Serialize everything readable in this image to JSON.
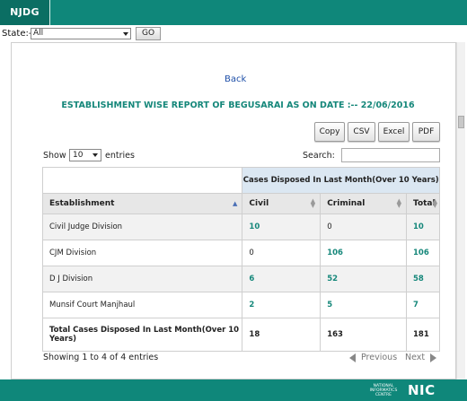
{
  "header": {
    "brand": "NJDG"
  },
  "state_bar": {
    "label": "State:-",
    "selected": "All",
    "go_label": "GO"
  },
  "report": {
    "back_label": "Back",
    "title": "ESTABLISHMENT WISE REPORT OF BEGUSARAI AS ON DATE :-- 22/06/2016",
    "export_buttons": [
      "Copy",
      "CSV",
      "Excel",
      "PDF"
    ],
    "show_label": "Show",
    "entries_value": "10",
    "entries_label": "entries",
    "search_label": "Search:",
    "search_value": "",
    "group_header": "Cases Disposed In Last Month(Over 10 Years)",
    "columns": [
      "Establishment",
      "Civil",
      "Criminal",
      "Total"
    ],
    "rows": [
      {
        "establishment": "Civil Judge Division",
        "civil": "10",
        "criminal": "0",
        "total": "10"
      },
      {
        "establishment": "CJM Division",
        "civil": "0",
        "criminal": "106",
        "total": "106"
      },
      {
        "establishment": "D J Division",
        "civil": "6",
        "criminal": "52",
        "total": "58"
      },
      {
        "establishment": "Munsif Court Manjhaul",
        "civil": "2",
        "criminal": "5",
        "total": "7"
      }
    ],
    "total_row": {
      "label": "Total Cases Disposed In Last Month(Over 10 Years)",
      "civil": "18",
      "criminal": "163",
      "total": "181"
    },
    "showing_text": "Showing 1 to 4 of 4 entries",
    "previous_label": "Previous",
    "next_label": "Next"
  },
  "footer": {
    "org_text": "NATIONAL INFORMATICS CENTRE",
    "logo_text": "NIC"
  },
  "colors": {
    "brand_teal": "#0f877a",
    "link_teal": "#15877a",
    "header_blue": "#dbe7f2",
    "back_blue": "#1e4fa8"
  }
}
